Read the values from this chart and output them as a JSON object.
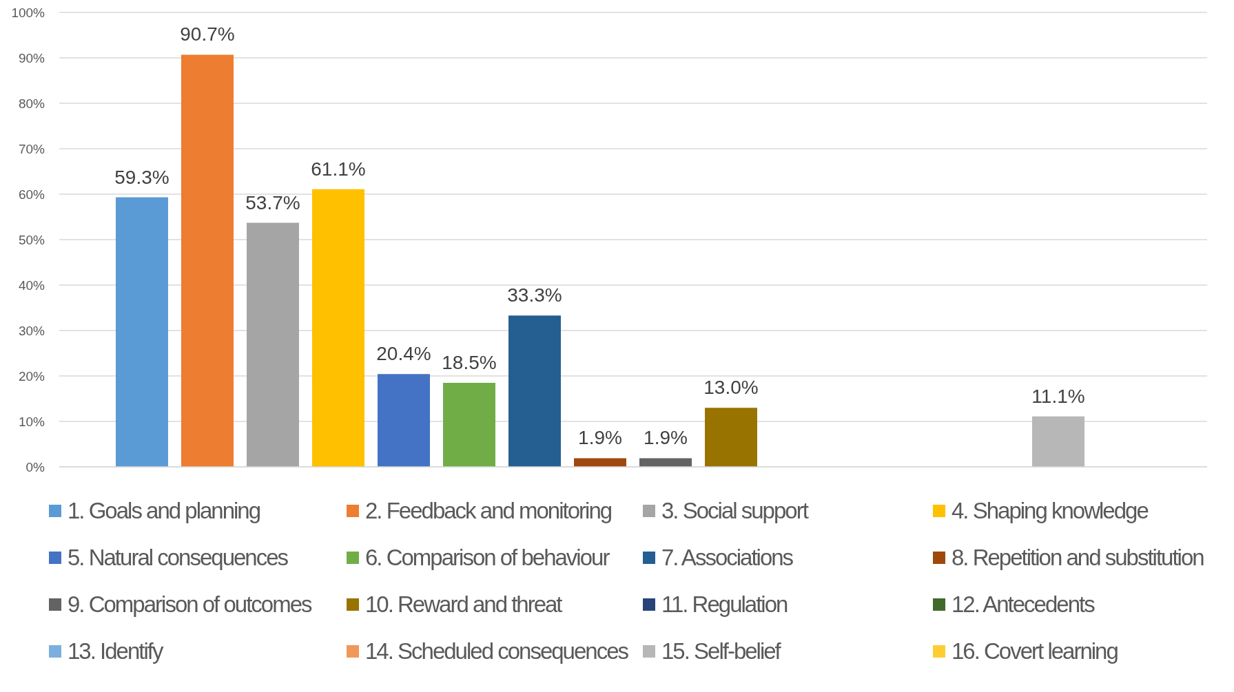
{
  "chart_data": {
    "type": "bar",
    "categories": [
      null
    ],
    "series": [
      {
        "name": "1. Goals and planning",
        "color": "#5b9bd5",
        "values": [
          59.3
        ],
        "value_labels": [
          "59.3%"
        ]
      },
      {
        "name": "2. Feedback and monitoring",
        "color": "#ed7d31",
        "values": [
          90.7
        ],
        "value_labels": [
          "90.7%"
        ]
      },
      {
        "name": "3. Social support",
        "color": "#a5a5a5",
        "values": [
          53.7
        ],
        "value_labels": [
          "53.7%"
        ]
      },
      {
        "name": "4. Shaping knowledge",
        "color": "#ffc000",
        "values": [
          61.1
        ],
        "value_labels": [
          "61.1%"
        ]
      },
      {
        "name": "5. Natural consequences",
        "color": "#4472c4",
        "values": [
          20.4
        ],
        "value_labels": [
          "20.4%"
        ]
      },
      {
        "name": "6. Comparison of behaviour",
        "color": "#70ad47",
        "values": [
          18.5
        ],
        "value_labels": [
          "18.5%"
        ]
      },
      {
        "name": "7. Associations",
        "color": "#255e91",
        "values": [
          33.3
        ],
        "value_labels": [
          "33.3%"
        ]
      },
      {
        "name": "8. Repetition and substitution",
        "color": "#9e480e",
        "values": [
          1.9
        ],
        "value_labels": [
          "1.9%"
        ]
      },
      {
        "name": "9. Comparison of outcomes",
        "color": "#636363",
        "values": [
          1.9
        ],
        "value_labels": [
          "1.9%"
        ]
      },
      {
        "name": "10. Reward and threat",
        "color": "#997300",
        "values": [
          13.0
        ],
        "value_labels": [
          "13.0%"
        ]
      },
      {
        "name": "11. Regulation",
        "color": "#264478",
        "values": [
          null
        ]
      },
      {
        "name": "12. Antecedents",
        "color": "#43682b",
        "values": [
          null
        ]
      },
      {
        "name": "13. Identify",
        "color": "#7cafdd",
        "values": [
          null
        ]
      },
      {
        "name": "14. Scheduled consequences",
        "color": "#f1975a",
        "values": [
          null
        ]
      },
      {
        "name": "15. Self-belief",
        "color": "#b7b7b7",
        "values": [
          11.1
        ],
        "value_labels": [
          "11.1%"
        ]
      },
      {
        "name": "16. Covert learning",
        "color": "#ffcd33",
        "values": [
          null
        ]
      }
    ],
    "ylim": [
      0,
      100
    ],
    "yticks": [
      {
        "value": 0,
        "label": "0%"
      },
      {
        "value": 10,
        "label": "10%"
      },
      {
        "value": 20,
        "label": "20%"
      },
      {
        "value": 30,
        "label": "30%"
      },
      {
        "value": 40,
        "label": "40%"
      },
      {
        "value": 50,
        "label": "50%"
      },
      {
        "value": 60,
        "label": "60%"
      },
      {
        "value": 70,
        "label": "70%"
      },
      {
        "value": 80,
        "label": "80%"
      },
      {
        "value": 90,
        "label": "90%"
      },
      {
        "value": 100,
        "label": "100%"
      }
    ],
    "grid": "y",
    "legend": "bottom"
  }
}
